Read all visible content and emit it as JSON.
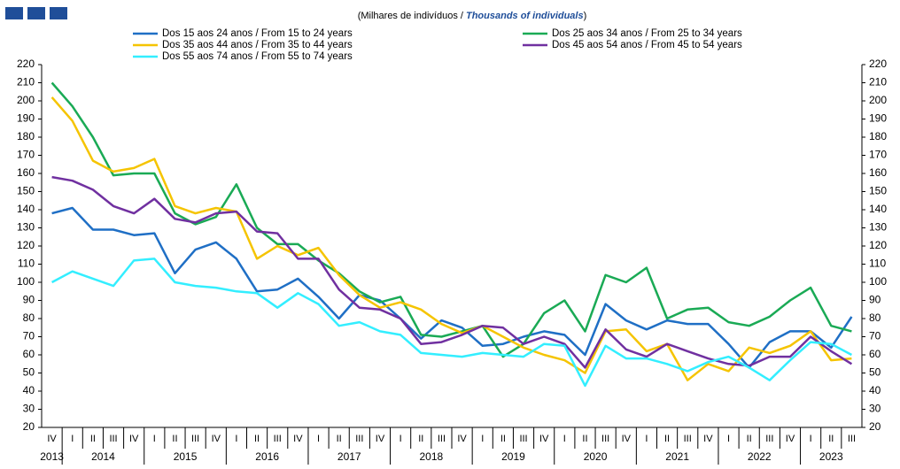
{
  "chart_data": {
    "type": "line",
    "subtitle_parts": [
      "(Milhares de indivíduos / ",
      "Thousands of individuals",
      ")"
    ],
    "categories": [
      "IV",
      "I",
      "II",
      "III",
      "IV",
      "I",
      "II",
      "III",
      "IV",
      "I",
      "II",
      "III",
      "IV",
      "I",
      "II",
      "III",
      "IV",
      "I",
      "II",
      "III",
      "IV",
      "I",
      "II",
      "III",
      "IV",
      "I",
      "II",
      "III",
      "IV",
      "I",
      "II",
      "III",
      "IV",
      "I",
      "II",
      "III",
      "IV",
      "I",
      "II",
      "III"
    ],
    "years": [
      "2013",
      "2014",
      "2015",
      "2016",
      "2017",
      "2018",
      "2019",
      "2020",
      "2021",
      "2022",
      "2023"
    ],
    "ylim": [
      20,
      220
    ],
    "yticks": [
      20,
      30,
      40,
      50,
      60,
      70,
      80,
      90,
      100,
      110,
      120,
      130,
      140,
      150,
      160,
      170,
      180,
      190,
      200,
      210,
      220
    ],
    "series": [
      {
        "name": "Dos 15 aos 24 anos / From 15 to 24 years",
        "color": "#1f6fc5",
        "values": [
          138,
          141,
          129,
          129,
          126,
          127,
          105,
          118,
          122,
          113,
          95,
          96,
          102,
          92,
          80,
          93,
          90,
          80,
          69,
          79,
          75,
          65,
          66,
          70,
          73,
          71,
          60,
          88,
          79,
          74,
          79,
          77,
          77,
          66,
          53,
          67,
          73,
          73,
          64,
          81
        ]
      },
      {
        "name": "Dos 25 aos 34 anos / From 25 to 34 years",
        "color": "#1aaa55",
        "values": [
          210,
          197,
          180,
          159,
          160,
          160,
          138,
          132,
          136,
          154,
          130,
          121,
          121,
          112,
          105,
          95,
          89,
          92,
          71,
          70,
          73,
          76,
          59,
          66,
          83,
          90,
          73,
          104,
          100,
          108,
          80,
          85,
          86,
          78,
          76,
          81,
          90,
          97,
          76,
          73
        ]
      },
      {
        "name": "Dos 35 aos 44 anos / From 35 to 44 years",
        "color": "#f5c400",
        "values": [
          202,
          189,
          167,
          161,
          163,
          168,
          142,
          138,
          141,
          139,
          113,
          120,
          115,
          119,
          104,
          93,
          86,
          89,
          85,
          77,
          72,
          76,
          70,
          64,
          60,
          57,
          50,
          73,
          74,
          62,
          66,
          46,
          55,
          51,
          64,
          61,
          65,
          73,
          57,
          58
        ]
      },
      {
        "name": "Dos 45 aos 54 anos / From 45 to 54 years",
        "color": "#7030a0",
        "values": [
          158,
          156,
          151,
          142,
          138,
          146,
          135,
          133,
          138,
          139,
          128,
          127,
          113,
          113,
          96,
          86,
          85,
          80,
          66,
          67,
          71,
          76,
          75,
          66,
          70,
          66,
          53,
          74,
          63,
          59,
          66,
          62,
          58,
          55,
          54,
          59,
          59,
          70,
          62,
          55
        ]
      },
      {
        "name": "Dos 55 aos 74 anos / From 55 to 74 years",
        "color": "#33eeff",
        "values": [
          100,
          106,
          102,
          98,
          112,
          113,
          100,
          98,
          97,
          95,
          94,
          86,
          94,
          88,
          76,
          78,
          73,
          71,
          61,
          60,
          59,
          61,
          60,
          59,
          66,
          65,
          43,
          65,
          58,
          58,
          55,
          51,
          56,
          59,
          53,
          46,
          57,
          67,
          66,
          60
        ]
      }
    ]
  }
}
